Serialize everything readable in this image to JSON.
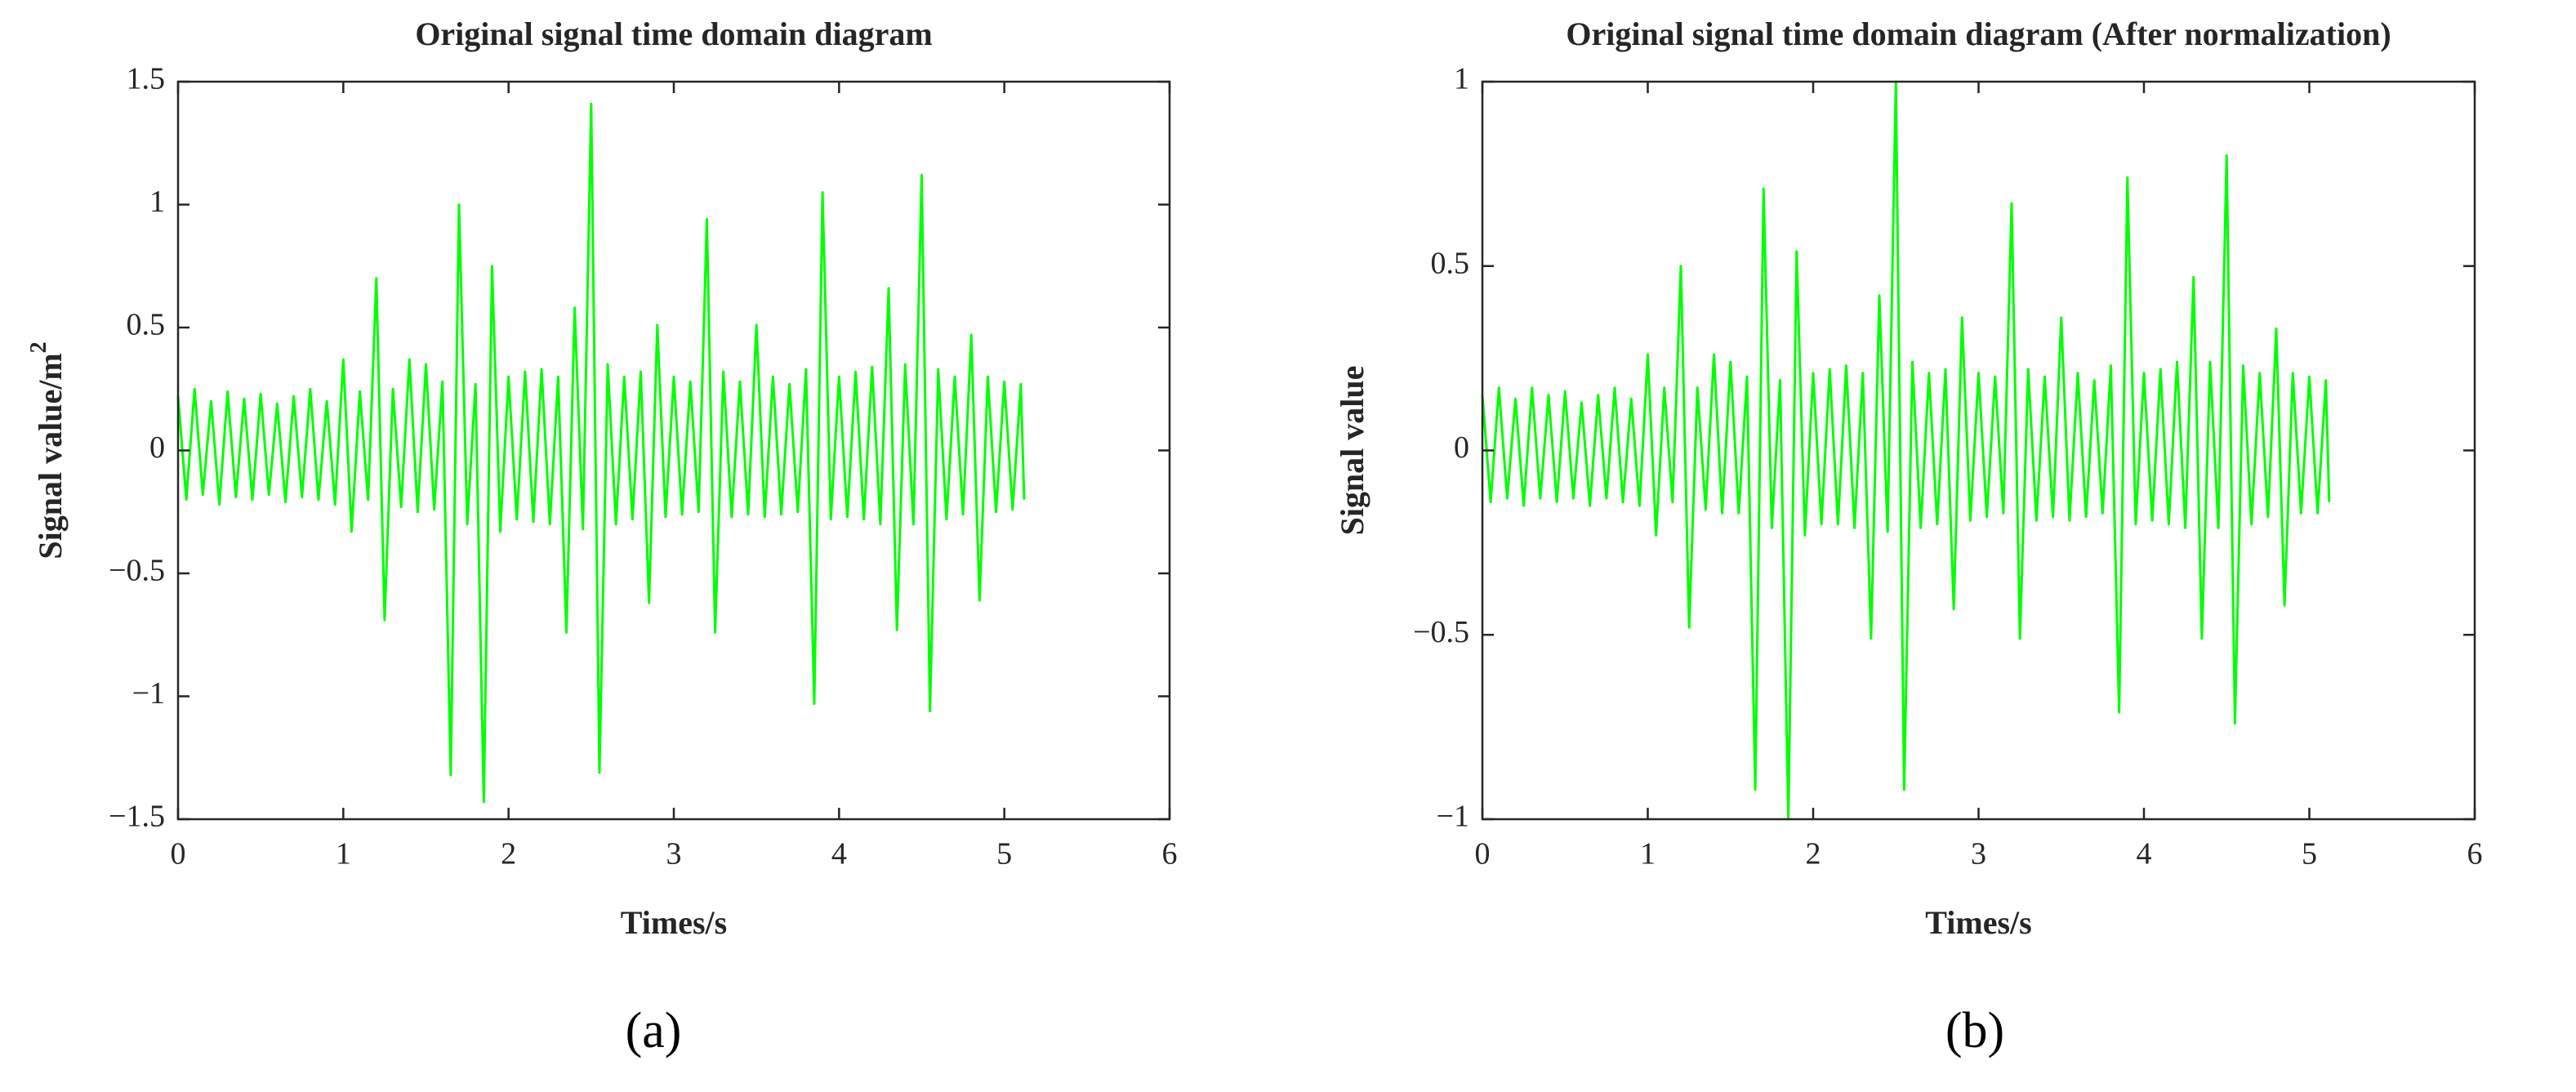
{
  "chart_data": [
    {
      "type": "line",
      "title": "Original signal time domain diagram",
      "xlabel": "Times/s",
      "ylabel": "Signal value/m",
      "ylabel_sup": "2",
      "panel_label": "(a)",
      "color": "#00ff00",
      "xlim": [
        0,
        6
      ],
      "xticks": [
        0,
        1,
        2,
        3,
        4,
        5,
        6
      ],
      "ylim": [
        -1.5,
        1.5
      ],
      "yticks": [
        {
          "value": -1.5,
          "label": "−1.5"
        },
        {
          "value": -1,
          "label": "−1"
        },
        {
          "value": -0.5,
          "label": "−0.5"
        },
        0,
        0.5,
        1,
        1.5
      ],
      "x": [
        0,
        0.05,
        0.1,
        0.15,
        0.2,
        0.25,
        0.3,
        0.35,
        0.4,
        0.45,
        0.5,
        0.55,
        0.6,
        0.65,
        0.7,
        0.75,
        0.8,
        0.85,
        0.9,
        0.95,
        1,
        1.05,
        1.1,
        1.15,
        1.2,
        1.25,
        1.3,
        1.35,
        1.4,
        1.45,
        1.5,
        1.55,
        1.6,
        1.65,
        1.7,
        1.75,
        1.8,
        1.85,
        1.9,
        1.95,
        2,
        2.05,
        2.1,
        2.15,
        2.2,
        2.25,
        2.3,
        2.35,
        2.4,
        2.45,
        2.5,
        2.55,
        2.6,
        2.65,
        2.7,
        2.75,
        2.8,
        2.85,
        2.9,
        2.95,
        3,
        3.05,
        3.1,
        3.15,
        3.2,
        3.25,
        3.3,
        3.35,
        3.4,
        3.45,
        3.5,
        3.55,
        3.6,
        3.65,
        3.7,
        3.75,
        3.8,
        3.85,
        3.9,
        3.95,
        4,
        4.05,
        4.1,
        4.15,
        4.2,
        4.25,
        4.3,
        4.35,
        4.4,
        4.45,
        4.5,
        4.55,
        4.6,
        4.65,
        4.7,
        4.75,
        4.8,
        4.85,
        4.9,
        4.95,
        5,
        5.05,
        5.1,
        5.12
      ],
      "values": [
        0.22,
        -0.2,
        0.25,
        -0.18,
        0.2,
        -0.22,
        0.24,
        -0.19,
        0.21,
        -0.2,
        0.23,
        -0.18,
        0.19,
        -0.21,
        0.22,
        -0.19,
        0.25,
        -0.2,
        0.2,
        -0.22,
        0.37,
        -0.33,
        0.24,
        -0.2,
        0.7,
        -0.69,
        0.25,
        -0.23,
        0.37,
        -0.25,
        0.35,
        -0.24,
        0.28,
        -1.32,
        1.0,
        -0.3,
        0.27,
        -1.43,
        0.75,
        -0.33,
        0.3,
        -0.28,
        0.32,
        -0.29,
        0.33,
        -0.3,
        0.3,
        -0.74,
        0.58,
        -0.32,
        1.41,
        -1.31,
        0.35,
        -0.3,
        0.3,
        -0.28,
        0.32,
        -0.62,
        0.51,
        -0.27,
        0.3,
        -0.26,
        0.28,
        -0.25,
        0.94,
        -0.74,
        0.32,
        -0.27,
        0.28,
        -0.26,
        0.51,
        -0.27,
        0.3,
        -0.26,
        0.27,
        -0.25,
        0.33,
        -1.03,
        1.05,
        -0.28,
        0.3,
        -0.27,
        0.32,
        -0.28,
        0.34,
        -0.3,
        0.66,
        -0.73,
        0.35,
        -0.3,
        1.12,
        -1.06,
        0.33,
        -0.28,
        0.3,
        -0.26,
        0.47,
        -0.61,
        0.3,
        -0.25,
        0.28,
        -0.24,
        0.27,
        -0.2
      ]
    },
    {
      "type": "line",
      "title": "Original signal time domain diagram (After normalization)",
      "xlabel": "Times/s",
      "ylabel": "Signal value",
      "panel_label": "(b)",
      "color": "#00ff00",
      "xlim": [
        0,
        6
      ],
      "xticks": [
        0,
        1,
        2,
        3,
        4,
        5,
        6
      ],
      "ylim": [
        -1,
        1
      ],
      "yticks": [
        {
          "value": -1,
          "label": "−1"
        },
        {
          "value": -0.5,
          "label": "−0.5"
        },
        0,
        0.5,
        1
      ],
      "x": [
        0,
        0.05,
        0.1,
        0.15,
        0.2,
        0.25,
        0.3,
        0.35,
        0.4,
        0.45,
        0.5,
        0.55,
        0.6,
        0.65,
        0.7,
        0.75,
        0.8,
        0.85,
        0.9,
        0.95,
        1,
        1.05,
        1.1,
        1.15,
        1.2,
        1.25,
        1.3,
        1.35,
        1.4,
        1.45,
        1.5,
        1.55,
        1.6,
        1.65,
        1.7,
        1.75,
        1.8,
        1.85,
        1.9,
        1.95,
        2,
        2.05,
        2.1,
        2.15,
        2.2,
        2.25,
        2.3,
        2.35,
        2.4,
        2.45,
        2.5,
        2.55,
        2.6,
        2.65,
        2.7,
        2.75,
        2.8,
        2.85,
        2.9,
        2.95,
        3,
        3.05,
        3.1,
        3.15,
        3.2,
        3.25,
        3.3,
        3.35,
        3.4,
        3.45,
        3.5,
        3.55,
        3.6,
        3.65,
        3.7,
        3.75,
        3.8,
        3.85,
        3.9,
        3.95,
        4,
        4.05,
        4.1,
        4.15,
        4.2,
        4.25,
        4.3,
        4.35,
        4.4,
        4.45,
        4.5,
        4.55,
        4.6,
        4.65,
        4.7,
        4.75,
        4.8,
        4.85,
        4.9,
        4.95,
        5,
        5.05,
        5.1,
        5.12
      ],
      "values": [
        0.15,
        -0.14,
        0.17,
        -0.13,
        0.14,
        -0.15,
        0.17,
        -0.13,
        0.15,
        -0.14,
        0.16,
        -0.13,
        0.13,
        -0.15,
        0.15,
        -0.13,
        0.17,
        -0.14,
        0.14,
        -0.15,
        0.26,
        -0.23,
        0.17,
        -0.14,
        0.5,
        -0.48,
        0.17,
        -0.16,
        0.26,
        -0.17,
        0.24,
        -0.17,
        0.2,
        -0.92,
        0.71,
        -0.21,
        0.19,
        -1,
        0.54,
        -0.23,
        0.21,
        -0.2,
        0.22,
        -0.2,
        0.23,
        -0.21,
        0.21,
        -0.51,
        0.42,
        -0.22,
        1,
        -0.92,
        0.24,
        -0.21,
        0.21,
        -0.2,
        0.22,
        -0.43,
        0.36,
        -0.19,
        0.21,
        -0.18,
        0.2,
        -0.17,
        0.67,
        -0.51,
        0.22,
        -0.19,
        0.2,
        -0.18,
        0.36,
        -0.19,
        0.21,
        -0.18,
        0.19,
        -0.17,
        0.23,
        -0.71,
        0.74,
        -0.2,
        0.21,
        -0.19,
        0.22,
        -0.2,
        0.24,
        -0.21,
        0.47,
        -0.51,
        0.24,
        -0.21,
        0.8,
        -0.74,
        0.23,
        -0.2,
        0.21,
        -0.18,
        0.33,
        -0.42,
        0.21,
        -0.17,
        0.2,
        -0.17,
        0.19,
        -0.14
      ]
    }
  ]
}
